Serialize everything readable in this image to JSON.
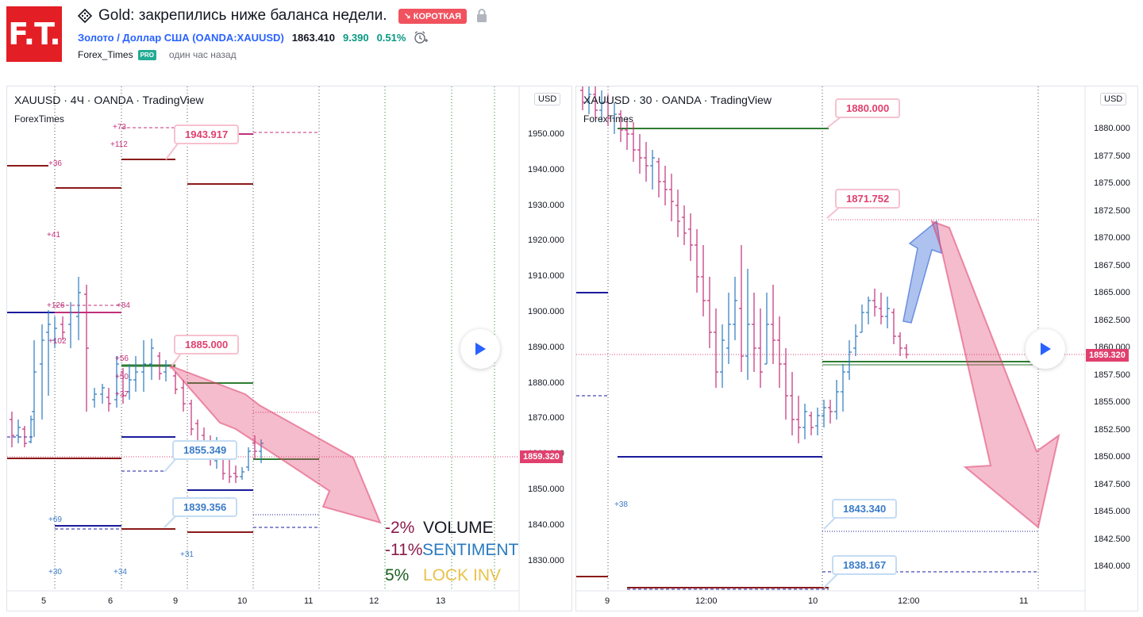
{
  "header": {
    "logo_text": "F.T.",
    "title": "Gold: закрепились ниже баланса недели.",
    "direction_badge": "↘ КОРОТКАЯ",
    "symbol_link": "Золото / Доллар США (OANDA:XAUUSD)",
    "price": "1863.410",
    "change": "9.390",
    "change_pct": "0.51%",
    "author": "Forex_Times",
    "pro_badge": "PRO",
    "time_ago": "один час назад"
  },
  "left_chart": {
    "title": "XAUUSD · 4Ч · OANDA · TradingView",
    "subtitle": "ForexTimes",
    "currency": "USD",
    "y_axis": [
      "1950.000",
      "1940.000",
      "1930.000",
      "1920.000",
      "1910.000",
      "1900.000",
      "1890.000",
      "1880.000",
      "1870.000",
      "1860.000",
      "1850.000",
      "1840.000",
      "1830.000"
    ],
    "x_axis": [
      "5",
      "6",
      "9",
      "10",
      "11",
      "12",
      "13"
    ],
    "current_price": "1859.320",
    "callouts": [
      "1943.917",
      "1885.000",
      "1855.349",
      "1839.356"
    ],
    "volume_labels": [
      "+73",
      "+112",
      "+36",
      "+41",
      "+126",
      "+84",
      "+102",
      "+56",
      "+50",
      "+37",
      "+69",
      "+31",
      "+30",
      "+34"
    ],
    "stats": [
      {
        "value": "-2%",
        "label": "VOLUME"
      },
      {
        "value": "-11%",
        "label": "SENTIMENT"
      },
      {
        "value": "5%",
        "label": "LOCK INV"
      }
    ]
  },
  "right_chart": {
    "title": "XAUUSD · 30 · OANDA · TradingView",
    "subtitle": "ForexTimes",
    "currency": "USD",
    "y_axis": [
      "1880.000",
      "1877.500",
      "1875.000",
      "1872.500",
      "1870.000",
      "1867.500",
      "1865.000",
      "1862.500",
      "1860.000",
      "1857.500",
      "1855.000",
      "1852.500",
      "1850.000",
      "1847.500",
      "1845.000",
      "1842.500",
      "1840.000"
    ],
    "x_axis": [
      "9",
      "12:00",
      "10",
      "12:00",
      "11"
    ],
    "current_price": "1859.320",
    "callouts": [
      "1880.000",
      "1871.752",
      "1843.340",
      "1838.167"
    ],
    "volume_labels": [
      "+38"
    ]
  },
  "colors": {
    "bullish": "#2a7abf",
    "bearish": "#c0307a",
    "accent_red": "#e0406e",
    "navy": "#1a1a9c",
    "darkred": "#8b1a1a",
    "green": "#2e7d32"
  }
}
